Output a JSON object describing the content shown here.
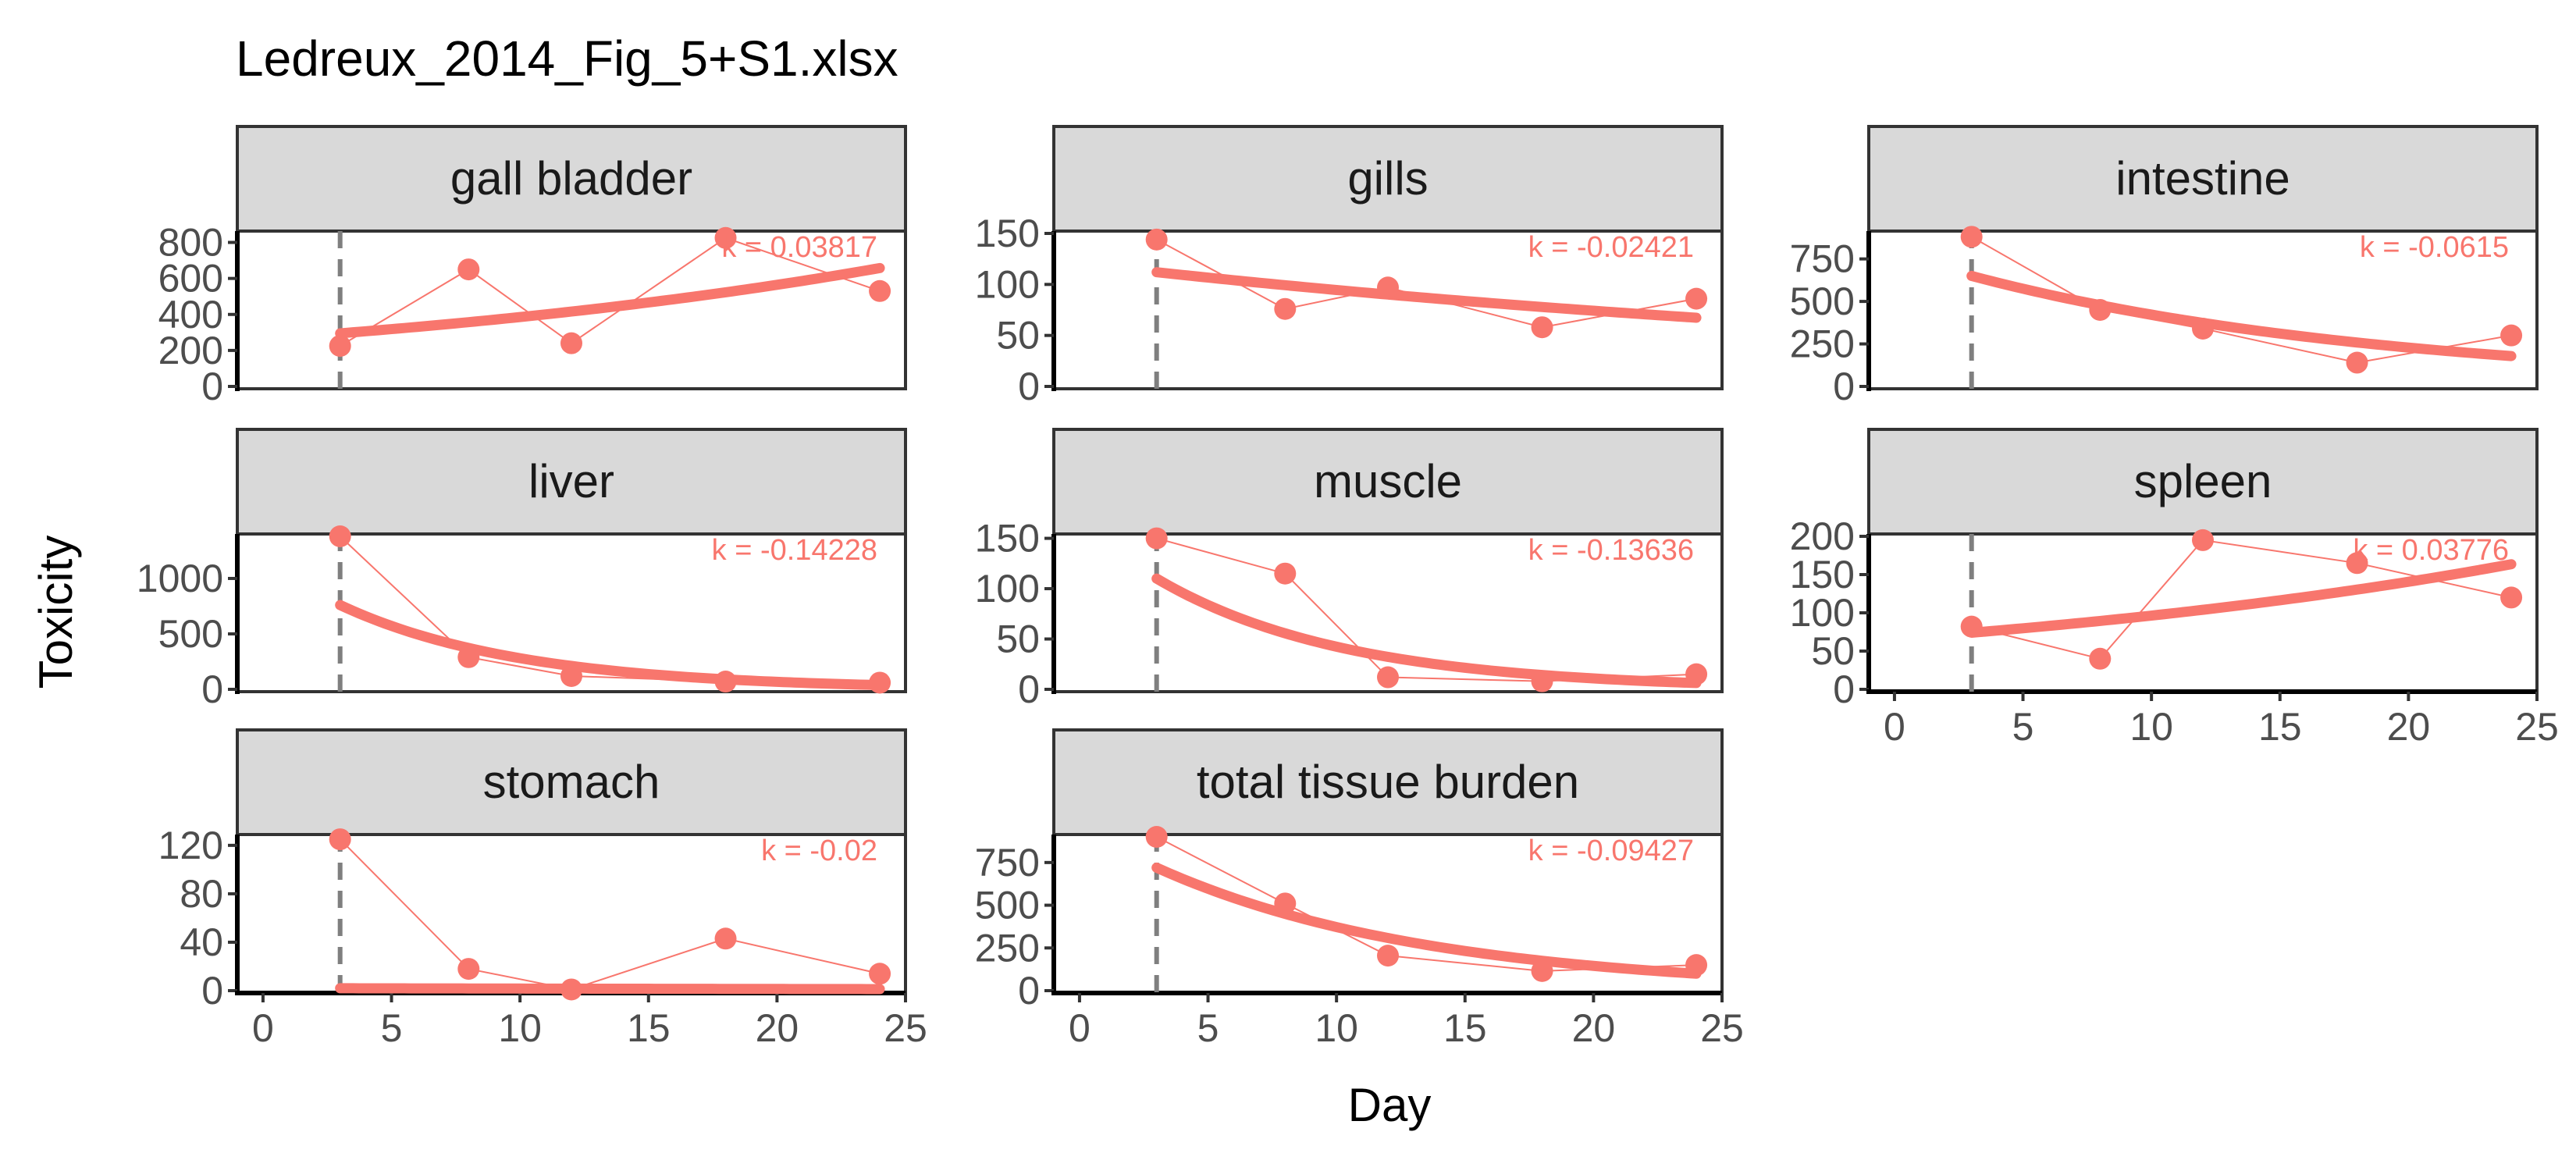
{
  "chart_data": {
    "type": "line",
    "title": "Ledreux_2014_Fig_5+S1.xlsx",
    "xlabel": "Day",
    "ylabel": "Toxicity",
    "xlim": [
      -1,
      25
    ],
    "xticks": [
      0,
      5,
      10,
      15,
      20,
      25
    ],
    "reference_day": 3,
    "series_color": "#f8766d",
    "reference_line_color": "#7f7f7f",
    "strip_color": "#d9d9d9",
    "facets": [
      {
        "name": "gall bladder",
        "k_label": "k = 0.03817",
        "k": 0.03817,
        "fit_start": 295,
        "x": [
          3,
          8,
          12,
          18,
          24
        ],
        "y": [
          225,
          650,
          240,
          825,
          530
        ],
        "ylim": [
          0,
          850
        ],
        "yticks": [
          0,
          200,
          400,
          600,
          800
        ]
      },
      {
        "name": "gills",
        "k_label": "k = -0.02421",
        "k": -0.02421,
        "fit_start": 112,
        "x": [
          3,
          8,
          12,
          18,
          24
        ],
        "y": [
          144,
          76,
          97,
          58,
          86
        ],
        "ylim": [
          0,
          150
        ],
        "yticks": [
          0,
          50,
          100,
          150
        ]
      },
      {
        "name": "intestine",
        "k_label": "k = -0.0615",
        "k": -0.0615,
        "fit_start": 650,
        "x": [
          3,
          8,
          12,
          18,
          24
        ],
        "y": [
          880,
          450,
          340,
          140,
          300
        ],
        "ylim": [
          0,
          900
        ],
        "yticks": [
          0,
          250,
          500,
          750
        ]
      },
      {
        "name": "liver",
        "k_label": "k = -0.14228",
        "k": -0.14228,
        "fit_start": 760,
        "x": [
          3,
          8,
          12,
          18,
          24
        ],
        "y": [
          1380,
          290,
          120,
          70,
          60
        ],
        "ylim": [
          0,
          1380
        ],
        "yticks": [
          0,
          500,
          1000
        ]
      },
      {
        "name": "muscle",
        "k_label": "k = -0.13636",
        "k": -0.13636,
        "fit_start": 110,
        "x": [
          3,
          8,
          12,
          18,
          24
        ],
        "y": [
          150,
          115,
          12,
          8,
          15
        ],
        "ylim": [
          0,
          152
        ],
        "yticks": [
          0,
          50,
          100,
          150
        ]
      },
      {
        "name": "spleen",
        "k_label": "k = 0.03776",
        "k": 0.03776,
        "fit_start": 74,
        "x": [
          3,
          8,
          12,
          18,
          24
        ],
        "y": [
          82,
          40,
          195,
          165,
          120
        ],
        "ylim": [
          0,
          200
        ],
        "yticks": [
          0,
          50,
          100,
          150,
          200
        ]
      },
      {
        "name": "stomach",
        "k_label": "k = -0.02",
        "k": -0.02,
        "fit_start": 2,
        "x": [
          3,
          8,
          12,
          18,
          24
        ],
        "y": [
          125,
          18,
          1,
          43,
          14
        ],
        "ylim": [
          0,
          127
        ],
        "yticks": [
          0,
          40,
          80,
          120
        ]
      },
      {
        "name": "total tissue burden",
        "k_label": "k = -0.09427",
        "k": -0.09427,
        "fit_start": 720,
        "x": [
          3,
          8,
          12,
          18,
          24
        ],
        "y": [
          900,
          510,
          205,
          115,
          150
        ],
        "ylim": [
          0,
          900
        ],
        "yticks": [
          0,
          250,
          500,
          750
        ]
      }
    ]
  }
}
